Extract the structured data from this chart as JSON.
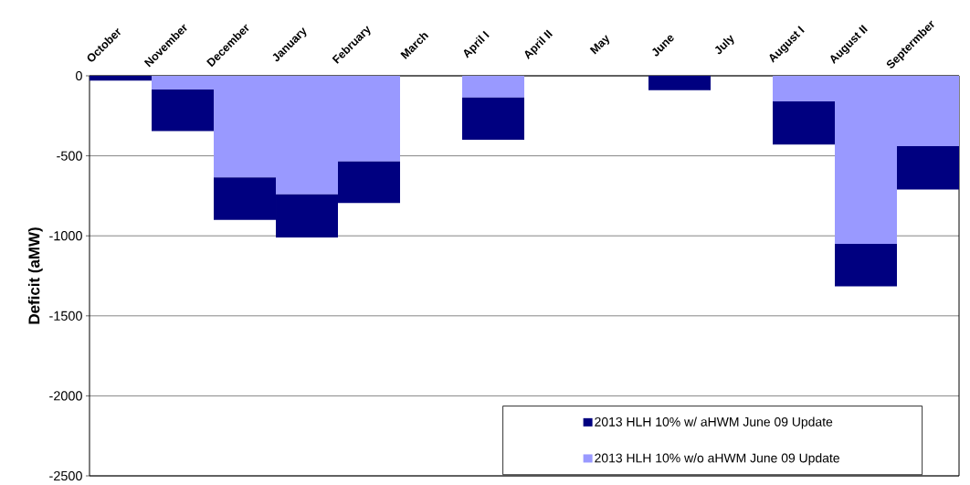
{
  "chart_data": {
    "type": "bar",
    "stacked": true,
    "ylabel": "Deficit (aMW)",
    "categories": [
      "October",
      "November",
      "December",
      "January",
      "February",
      "March",
      "April I",
      "April II",
      "May",
      "June",
      "July",
      "August I",
      "August II",
      "Septermber"
    ],
    "series": [
      {
        "name": "2013 HLH 10% w/o aHWM June 09 Update",
        "color": "#9999ff",
        "values": [
          null,
          -85,
          -635,
          -740,
          -535,
          null,
          -135,
          null,
          null,
          null,
          null,
          -160,
          -1050,
          -440
        ]
      },
      {
        "name": "2013 HLH 10% w/ aHWM June 09 Update",
        "color": "#000080",
        "values": [
          -30,
          -260,
          -265,
          -270,
          -260,
          null,
          -265,
          null,
          null,
          -90,
          null,
          -270,
          -265,
          -270
        ]
      }
    ],
    "ylim": [
      -2500,
      0
    ],
    "yticks": [
      -2500,
      -2000,
      -1500,
      -1000,
      -500,
      0
    ],
    "grid": "y",
    "legend": "bottom right"
  }
}
